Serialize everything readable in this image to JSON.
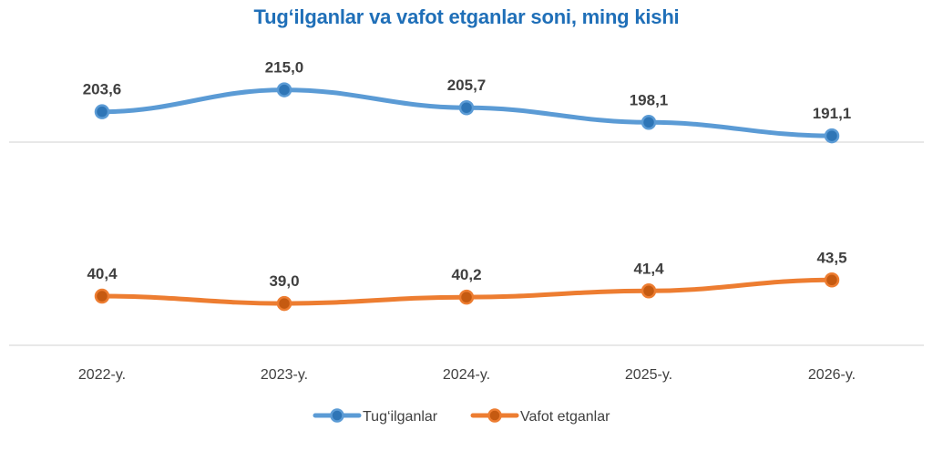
{
  "chart_data": {
    "type": "line",
    "title": "Tug‘ilganlar va vafot etganlar soni, ming kishi",
    "categories": [
      "2022-y.",
      "2023-y.",
      "2024-y.",
      "2025-y.",
      "2026-y."
    ],
    "series": [
      {
        "name": "Tug‘ilganlar",
        "values": [
          203.6,
          215.0,
          205.7,
          198.1,
          191.1
        ],
        "labels": [
          "203,6",
          "215,0",
          "205,7",
          "198,1",
          "191,1"
        ],
        "color": "#5b9bd5",
        "marker_color": "#2e75b6"
      },
      {
        "name": "Vafot etganlar",
        "values": [
          40.4,
          39.0,
          40.2,
          41.4,
          43.5
        ],
        "labels": [
          "40,4",
          "39,0",
          "40,2",
          "41,4",
          "43,5"
        ],
        "color": "#ed7d31",
        "marker_color": "#c55a11"
      }
    ],
    "legend_position": "bottom-center",
    "grid": false
  },
  "colors": {
    "title": "#1f6fb8",
    "text": "#404040",
    "separator": "#d9d9d9"
  }
}
